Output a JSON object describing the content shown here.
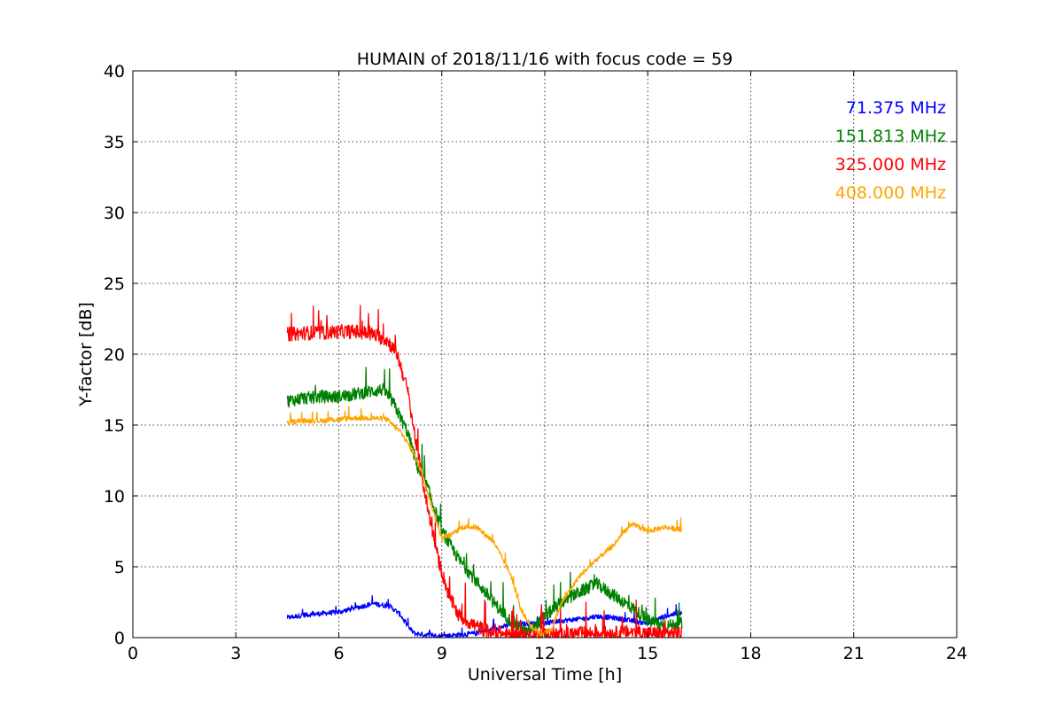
{
  "chart_data": {
    "type": "line",
    "title": "HUMAIN of 2018/11/16 with focus code = 59",
    "xlabel": "Universal Time [h]",
    "ylabel": "Y-factor [dB]",
    "xlim": [
      0,
      24
    ],
    "ylim": [
      0,
      40
    ],
    "xticks": [
      0,
      3,
      6,
      9,
      12,
      15,
      18,
      21,
      24
    ],
    "yticks": [
      0,
      5,
      10,
      15,
      20,
      25,
      30,
      35,
      40
    ],
    "grid": true,
    "legend_placement": "top-right",
    "series": [
      {
        "name": "71.375 MHz",
        "color": "#0000ff",
        "noise": 0.35,
        "x": [
          4.5,
          5.0,
          5.5,
          6.0,
          6.5,
          7.0,
          7.5,
          7.8,
          8.0,
          8.2,
          8.5,
          9.0,
          9.5,
          10.0,
          10.5,
          11.0,
          11.5,
          12.0,
          12.5,
          13.0,
          13.5,
          14.0,
          14.5,
          15.0,
          15.5,
          16.0
        ],
        "y": [
          1.4,
          1.6,
          1.7,
          1.8,
          2.1,
          2.4,
          2.2,
          1.6,
          0.8,
          0.3,
          0.2,
          0.1,
          0.2,
          0.3,
          0.6,
          0.9,
          1.0,
          1.0,
          1.2,
          1.3,
          1.5,
          1.4,
          1.2,
          1.0,
          1.5,
          1.8
        ]
      },
      {
        "name": "151.813 MHz",
        "color": "#008000",
        "noise": 0.9,
        "x": [
          4.5,
          5.0,
          5.5,
          6.0,
          6.5,
          7.0,
          7.3,
          7.6,
          8.0,
          8.3,
          8.6,
          9.0,
          9.5,
          10.0,
          10.5,
          11.0,
          11.5,
          12.0,
          12.5,
          13.0,
          13.5,
          14.0,
          14.3,
          14.6,
          15.0,
          15.5,
          16.0
        ],
        "y": [
          16.7,
          16.9,
          17.0,
          17.0,
          17.2,
          17.4,
          17.5,
          16.5,
          14.5,
          12.0,
          10.5,
          7.5,
          5.5,
          4.0,
          2.5,
          1.2,
          0.3,
          1.5,
          2.5,
          3.2,
          3.8,
          3.0,
          2.5,
          2.0,
          1.2,
          0.8,
          1.0
        ]
      },
      {
        "name": "325.000 MHz",
        "color": "#ff0000",
        "noise": 1.0,
        "x": [
          4.5,
          5.0,
          5.5,
          6.0,
          6.5,
          7.0,
          7.4,
          7.7,
          8.0,
          8.3,
          8.6,
          8.9,
          9.2,
          9.5,
          10.0,
          10.5,
          11.0,
          11.5,
          12.0,
          12.5,
          13.0,
          13.5,
          14.0,
          14.5,
          15.0,
          15.5,
          16.0
        ],
        "y": [
          21.4,
          21.5,
          21.5,
          21.6,
          21.6,
          21.4,
          21.0,
          20.0,
          17.5,
          13.0,
          9.0,
          5.5,
          3.0,
          1.5,
          0.8,
          0.3,
          0.2,
          0.1,
          0.2,
          0.2,
          0.3,
          0.3,
          0.3,
          0.4,
          0.3,
          0.3,
          0.3
        ]
      },
      {
        "name": "408.000 MHz",
        "color": "#ffa500",
        "noise": 0.35,
        "x": [
          4.5,
          5.0,
          5.5,
          6.0,
          6.5,
          7.0,
          7.4,
          7.8,
          8.2,
          8.5,
          8.8,
          9.0,
          9.3,
          9.6,
          10.0,
          10.5,
          11.0,
          11.3,
          11.6,
          11.9,
          12.2,
          12.5,
          13.0,
          13.5,
          14.0,
          14.3,
          14.6,
          15.0,
          15.5,
          16.0
        ],
        "y": [
          15.2,
          15.3,
          15.3,
          15.4,
          15.5,
          15.5,
          15.4,
          14.5,
          13.0,
          11.0,
          8.5,
          7.0,
          7.3,
          7.8,
          7.8,
          6.8,
          4.5,
          2.0,
          0.8,
          0.2,
          0.6,
          2.5,
          4.3,
          5.5,
          6.5,
          7.5,
          8.0,
          7.5,
          7.8,
          7.6
        ]
      }
    ]
  }
}
